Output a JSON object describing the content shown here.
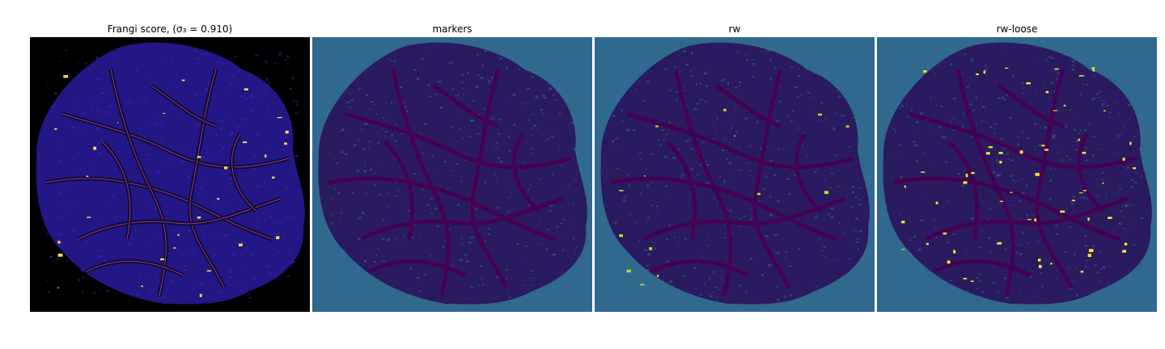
{
  "panels": [
    {
      "title": "Frangi score, (σ₃ = 0.910)",
      "background": "#000000",
      "blob": "#231685",
      "vessel": "#0b0b3a",
      "highlight": "#e34b8a",
      "hot": "#ffd35a"
    },
    {
      "title": "markers",
      "background": "#31688e",
      "blob": "#2a1a60",
      "vessel": "#440154",
      "highlight": "#31688e",
      "hot": "#31688e"
    },
    {
      "title": "rw",
      "background": "#31688e",
      "blob": "#2a1a60",
      "vessel": "#440154",
      "highlight": "#31688e",
      "hot": "#b5de2b"
    },
    {
      "title": "rw-loose",
      "background": "#31688e",
      "blob": "#2a1a60",
      "vessel": "#440154",
      "highlight": "#31688e",
      "hot": "#fde725"
    }
  ]
}
